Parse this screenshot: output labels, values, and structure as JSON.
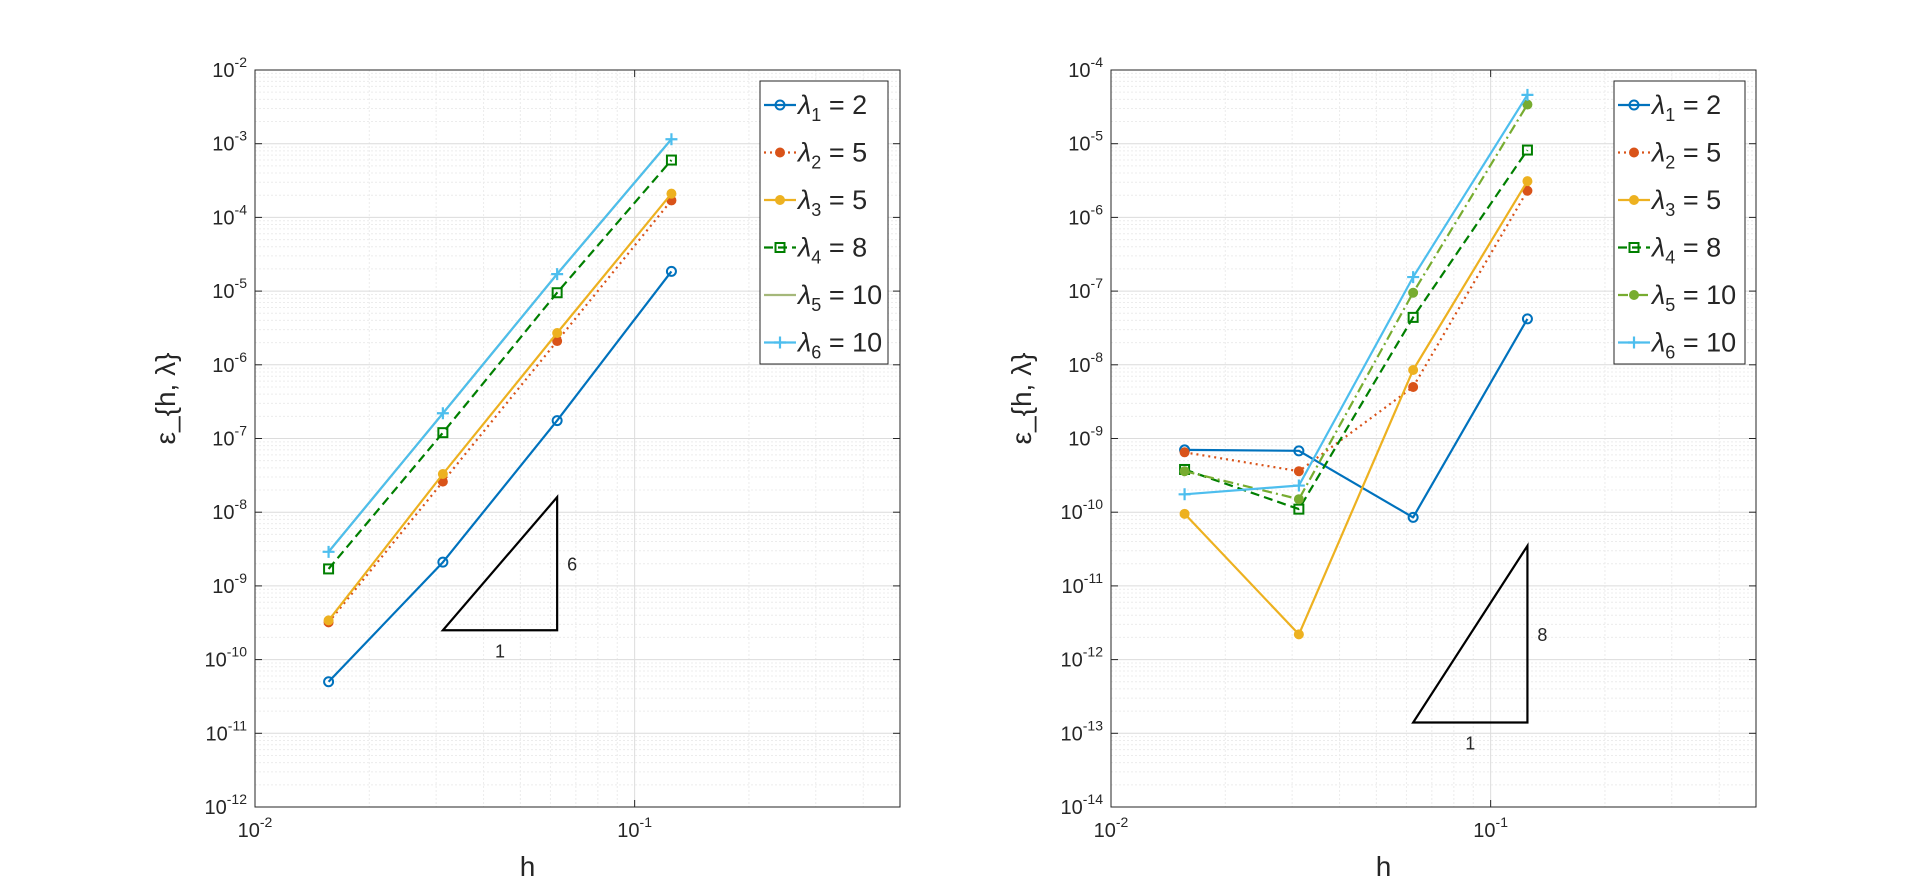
{
  "figure": {
    "description_panels": 2
  },
  "chart_data": [
    {
      "type": "line",
      "scale": {
        "x": "log",
        "y": "log"
      },
      "title": "",
      "xlabel": "h",
      "ylabel": "ε_{h, λ}",
      "xlim": [
        0.01,
        0.5
      ],
      "ylim": [
        1e-12,
        0.01
      ],
      "grid": true,
      "legend_position": "top-right",
      "x_ticks": [
        {
          "mant": "10",
          "exp": "-2",
          "value": 0.01
        },
        {
          "mant": "10",
          "exp": "-1",
          "value": 0.1
        }
      ],
      "y_ticks": [
        {
          "mant": "10",
          "exp": "-12",
          "value": 1e-12
        },
        {
          "mant": "10",
          "exp": "-11",
          "value": 1e-11
        },
        {
          "mant": "10",
          "exp": "-10",
          "value": 1e-10
        },
        {
          "mant": "10",
          "exp": "-9",
          "value": 1e-09
        },
        {
          "mant": "10",
          "exp": "-8",
          "value": 1e-08
        },
        {
          "mant": "10",
          "exp": "-7",
          "value": 1e-07
        },
        {
          "mant": "10",
          "exp": "-6",
          "value": 1e-06
        },
        {
          "mant": "10",
          "exp": "-5",
          "value": 1e-05
        },
        {
          "mant": "10",
          "exp": "-4",
          "value": 0.0001
        },
        {
          "mant": "10",
          "exp": "-3",
          "value": 0.001
        },
        {
          "mant": "10",
          "exp": "-2",
          "value": 0.01
        }
      ],
      "x": [
        0.015625,
        0.03125,
        0.0625,
        0.125
      ],
      "series": [
        {
          "name": "λ1 = 2",
          "sub": "1",
          "value_label": " = 2",
          "color": "#0072BD",
          "dash": "solid",
          "marker": "circle",
          "values": [
            5e-11,
            2.1e-09,
            1.75e-07,
            1.85e-05
          ]
        },
        {
          "name": "λ2 = 5",
          "sub": "2",
          "value_label": " = 5",
          "color": "#D95319",
          "dash": "dotted",
          "marker": "dot",
          "values": [
            3.2e-10,
            2.6e-08,
            2.1e-06,
            0.00017
          ]
        },
        {
          "name": "λ3 = 5",
          "sub": "3",
          "value_label": " = 5",
          "color": "#EDB120",
          "dash": "solid",
          "marker": "dot",
          "values": [
            3.4e-10,
            3.3e-08,
            2.7e-06,
            0.00021
          ]
        },
        {
          "name": "λ4 = 8",
          "sub": "4",
          "value_label": " = 8",
          "color": "#007F00",
          "dash": "dashed",
          "marker": "square",
          "values": [
            1.7e-09,
            1.2e-07,
            9.5e-06,
            0.0006
          ]
        },
        {
          "name": "λ5 = 10",
          "sub": "5",
          "value_label": " = 10",
          "color": "#A5B87A",
          "dash": "solid",
          "marker": "none",
          "values": [
            2.9e-09,
            2.2e-07,
            1.7e-05,
            0.00115
          ]
        },
        {
          "name": "λ6 = 10",
          "sub": "6",
          "value_label": " = 10",
          "color": "#4DBEEE",
          "dash": "solid",
          "marker": "plus",
          "values": [
            2.9e-09,
            2.2e-07,
            1.7e-05,
            0.00115
          ]
        }
      ],
      "slope_triangle": {
        "x0": 0.03125,
        "x1": 0.0625,
        "y_base": 2.5e-10,
        "y_top": 1.6e-08,
        "run_label": "1",
        "rise_label": "6"
      }
    },
    {
      "type": "line",
      "scale": {
        "x": "log",
        "y": "log"
      },
      "title": "",
      "xlabel": "h",
      "ylabel": "ε_{h, λ}",
      "xlim": [
        0.01,
        0.5
      ],
      "ylim": [
        1e-14,
        0.0001
      ],
      "grid": true,
      "legend_position": "top-right",
      "x_ticks": [
        {
          "mant": "10",
          "exp": "-2",
          "value": 0.01
        },
        {
          "mant": "10",
          "exp": "-1",
          "value": 0.1
        }
      ],
      "y_ticks": [
        {
          "mant": "10",
          "exp": "-14",
          "value": 1e-14
        },
        {
          "mant": "10",
          "exp": "-13",
          "value": 1e-13
        },
        {
          "mant": "10",
          "exp": "-12",
          "value": 1e-12
        },
        {
          "mant": "10",
          "exp": "-11",
          "value": 1e-11
        },
        {
          "mant": "10",
          "exp": "-10",
          "value": 1e-10
        },
        {
          "mant": "10",
          "exp": "-9",
          "value": 1e-09
        },
        {
          "mant": "10",
          "exp": "-8",
          "value": 1e-08
        },
        {
          "mant": "10",
          "exp": "-7",
          "value": 1e-07
        },
        {
          "mant": "10",
          "exp": "-6",
          "value": 1e-06
        },
        {
          "mant": "10",
          "exp": "-5",
          "value": 1e-05
        },
        {
          "mant": "10",
          "exp": "-4",
          "value": 0.0001
        }
      ],
      "x": [
        0.015625,
        0.03125,
        0.0625,
        0.125
      ],
      "series": [
        {
          "name": "λ1 = 2",
          "sub": "1",
          "value_label": " = 2",
          "color": "#0072BD",
          "dash": "solid",
          "marker": "circle",
          "values": [
            7e-10,
            6.8e-10,
            8.5e-11,
            4.2e-08
          ]
        },
        {
          "name": "λ2 = 5",
          "sub": "2",
          "value_label": " = 5",
          "color": "#D95319",
          "dash": "dotted",
          "marker": "dot",
          "values": [
            6.5e-10,
            3.6e-10,
            5e-09,
            2.3e-06
          ]
        },
        {
          "name": "λ3 = 5",
          "sub": "3",
          "value_label": " = 5",
          "color": "#EDB120",
          "dash": "solid",
          "marker": "dot",
          "values": [
            9.5e-11,
            2.2e-12,
            8.5e-09,
            3.1e-06
          ]
        },
        {
          "name": "λ4 = 8",
          "sub": "4",
          "value_label": " = 8",
          "color": "#007F00",
          "dash": "dashed",
          "marker": "square",
          "values": [
            3.8e-10,
            1.1e-10,
            4.4e-08,
            8.2e-06
          ]
        },
        {
          "name": "λ5 = 10",
          "sub": "5",
          "value_label": " = 10",
          "color": "#77AC30",
          "dash": "dashdot",
          "marker": "dot",
          "values": [
            3.6e-10,
            1.5e-10,
            9.5e-08,
            3.4e-05
          ]
        },
        {
          "name": "λ6 = 10",
          "sub": "6",
          "value_label": " = 10",
          "color": "#4DBEEE",
          "dash": "solid",
          "marker": "plus",
          "values": [
            1.75e-10,
            2.3e-10,
            1.55e-07,
            4.6e-05
          ]
        }
      ],
      "slope_triangle": {
        "x0": 0.0625,
        "x1": 0.125,
        "y_base": 1.4e-13,
        "y_top": 3.5e-11,
        "run_label": "1",
        "rise_label": "8"
      }
    }
  ]
}
